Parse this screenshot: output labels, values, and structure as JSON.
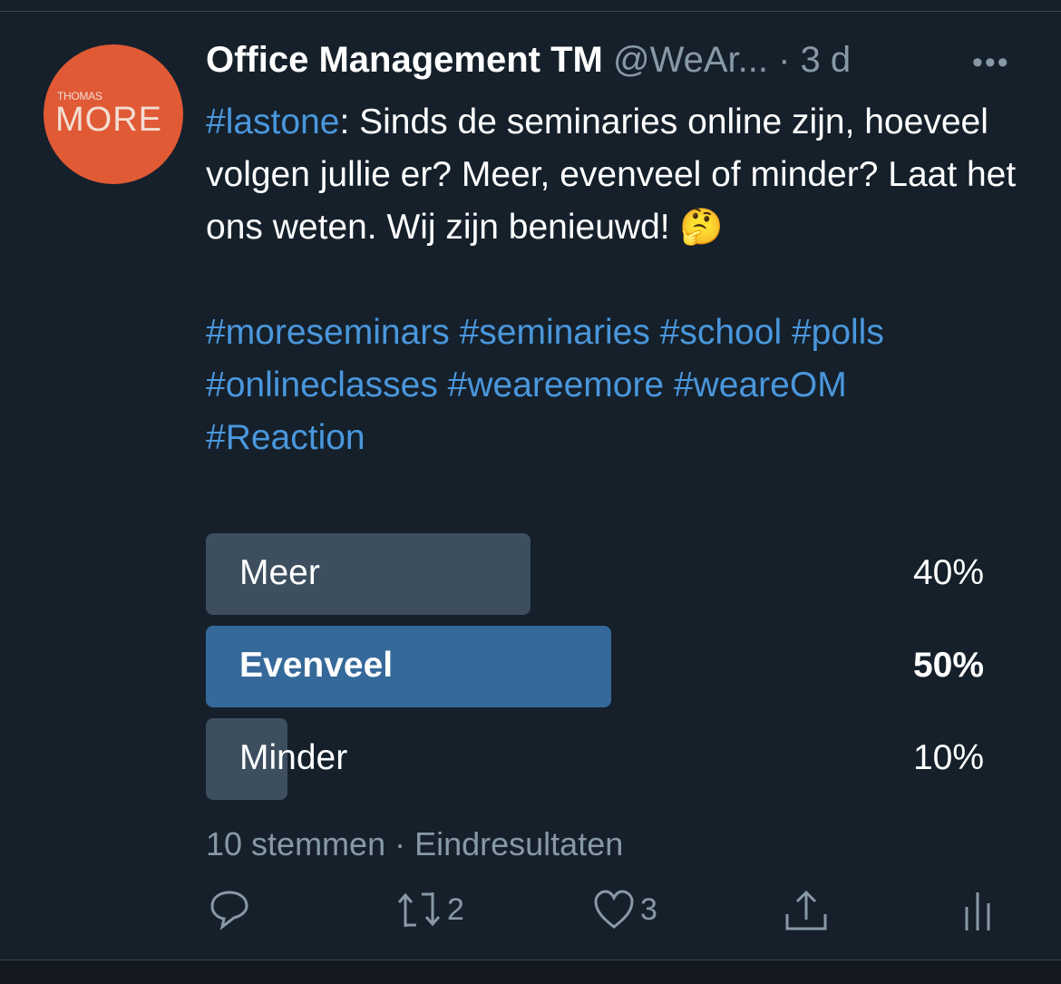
{
  "tweet": {
    "avatar_logo": "THOMAS MORE",
    "name": "Office Management TM",
    "handle": "@WeAr...",
    "time": "· 3 d",
    "more": "•••",
    "lead_tag": "#lastone",
    "body": ": Sinds de seminaries online zijn, hoeveel volgen jullie er? Meer, evenveel of minder? Laat het ons weten. Wij zijn benieuwd! 🤔",
    "tags_line1": "#moreseminars #seminaries #school #polls",
    "tags_line2": "#onlineclasses #weareemore #weareOM",
    "tags_line3": "#Reaction"
  },
  "poll": {
    "options": [
      {
        "label": "Meer",
        "percent_text": "40%",
        "percent": 40,
        "winner": false
      },
      {
        "label": "Evenveel",
        "percent_text": "50%",
        "percent": 50,
        "winner": true
      },
      {
        "label": "Minder",
        "percent_text": "10%",
        "percent": 10,
        "winner": false
      }
    ],
    "votes": "10 stemmen",
    "status": "Eindresultaten"
  },
  "actions": {
    "retweets": "2",
    "likes": "3"
  },
  "colors": {
    "background": "#15202b",
    "link": "#4a97dc",
    "winner_bar": "#35699a",
    "bar": "#3d4f5f",
    "muted": "#8899a6"
  }
}
